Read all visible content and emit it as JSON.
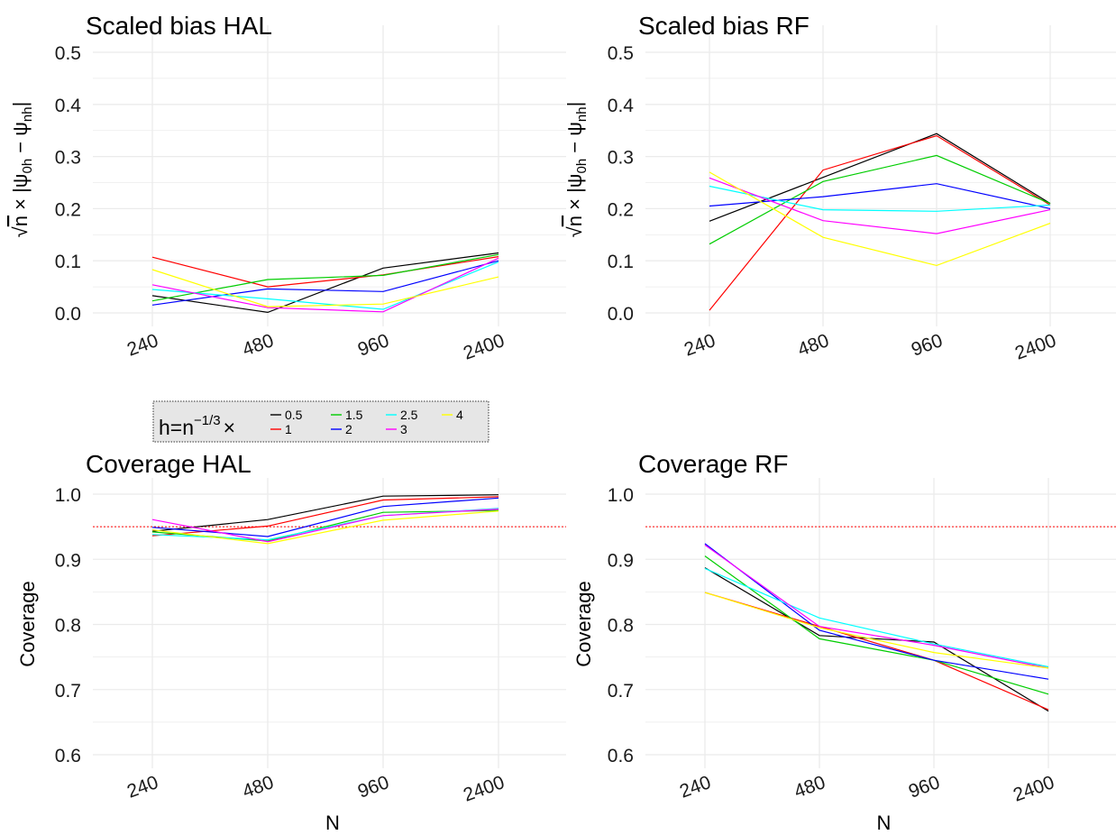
{
  "colors": {
    "0.5": "#000000",
    "1": "#ff0000",
    "1.5": "#00cd00",
    "2": "#0000ff",
    "2.5": "#00ffff",
    "3": "#ff00ff",
    "4": "#ffff00",
    "reference": "#ff0000",
    "grid": "#ebebeb"
  },
  "legend": {
    "title_main": "h=n",
    "title_sup": "−1/3",
    "title_times": "×",
    "entries": [
      "0.5",
      "1",
      "1.5",
      "2",
      "2.5",
      "3",
      "4"
    ]
  },
  "chart_data": [
    {
      "type": "line",
      "title": "Scaled bias HAL",
      "xlabel": "",
      "ylabel": "√n × |ψ0h − ψ̂nh|",
      "ylabel_parts": {
        "root": "n",
        "times": " × |",
        "psi1": "ψ",
        "sub1": "0h",
        "minus": " − ",
        "psi2": "ψ",
        "sub2": "nh",
        "close": "|"
      },
      "categories": [
        "240",
        "480",
        "960",
        "2400"
      ],
      "ylim": [
        0.0,
        0.5
      ],
      "yticks": [
        "0.0",
        "0.1",
        "0.2",
        "0.3",
        "0.4",
        "0.5"
      ],
      "series": [
        {
          "name": "0.5",
          "values": [
            0.033,
            0.001,
            0.086,
            0.115
          ]
        },
        {
          "name": "1",
          "values": [
            0.107,
            0.05,
            0.073,
            0.108
          ]
        },
        {
          "name": "1.5",
          "values": [
            0.023,
            0.064,
            0.072,
            0.112
          ]
        },
        {
          "name": "2",
          "values": [
            0.015,
            0.046,
            0.041,
            0.1
          ]
        },
        {
          "name": "2.5",
          "values": [
            0.045,
            0.027,
            0.007,
            0.098
          ]
        },
        {
          "name": "3",
          "values": [
            0.054,
            0.01,
            0.002,
            0.105
          ]
        },
        {
          "name": "4",
          "values": [
            0.083,
            0.012,
            0.017,
            0.069
          ]
        }
      ]
    },
    {
      "type": "line",
      "title": "Scaled bias RF",
      "xlabel": "",
      "ylabel": "√n × |ψ0h − ψ̂nh|",
      "ylabel_parts": {
        "root": "n",
        "times": " × |",
        "psi1": "ψ",
        "sub1": "0h",
        "minus": " − ",
        "psi2": "ψ",
        "sub2": "nh",
        "close": "|"
      },
      "categories": [
        "240",
        "480",
        "960",
        "2400"
      ],
      "ylim": [
        0.0,
        0.5
      ],
      "yticks": [
        "0.0",
        "0.1",
        "0.2",
        "0.3",
        "0.4",
        "0.5"
      ],
      "series": [
        {
          "name": "0.5",
          "values": [
            0.176,
            0.26,
            0.344,
            0.21
          ]
        },
        {
          "name": "1",
          "values": [
            0.005,
            0.274,
            0.34,
            0.207
          ]
        },
        {
          "name": "1.5",
          "values": [
            0.132,
            0.252,
            0.302,
            0.21
          ]
        },
        {
          "name": "2",
          "values": [
            0.205,
            0.223,
            0.248,
            0.2
          ]
        },
        {
          "name": "2.5",
          "values": [
            0.243,
            0.198,
            0.195,
            0.207
          ]
        },
        {
          "name": "3",
          "values": [
            0.259,
            0.177,
            0.152,
            0.198
          ]
        },
        {
          "name": "4",
          "values": [
            0.27,
            0.145,
            0.091,
            0.172
          ]
        }
      ]
    },
    {
      "type": "line",
      "title": "Coverage HAL",
      "xlabel": "N",
      "ylabel": "Coverage",
      "categories": [
        "240",
        "480",
        "960",
        "2400"
      ],
      "ylim": [
        0.6,
        1.0
      ],
      "yticks": [
        "0.6",
        "0.7",
        "0.8",
        "0.9",
        "1.0"
      ],
      "reference_line": 0.95,
      "series": [
        {
          "name": "0.5",
          "values": [
            0.943,
            0.961,
            0.997,
            0.999
          ]
        },
        {
          "name": "1",
          "values": [
            0.936,
            0.951,
            0.991,
            0.996
          ]
        },
        {
          "name": "1.5",
          "values": [
            0.942,
            0.928,
            0.972,
            0.975
          ]
        },
        {
          "name": "2",
          "values": [
            0.949,
            0.935,
            0.981,
            0.994
          ]
        },
        {
          "name": "2.5",
          "values": [
            0.938,
            0.93,
            0.967,
            0.978
          ]
        },
        {
          "name": "3",
          "values": [
            0.961,
            0.927,
            0.967,
            0.977
          ]
        },
        {
          "name": "4",
          "values": [
            0.945,
            0.924,
            0.96,
            0.974
          ]
        }
      ]
    },
    {
      "type": "line",
      "title": "Coverage RF",
      "xlabel": "N",
      "ylabel": "Coverage",
      "categories": [
        "240",
        "480",
        "960",
        "2400"
      ],
      "ylim": [
        0.6,
        1.0
      ],
      "yticks": [
        "0.6",
        "0.7",
        "0.8",
        "0.9",
        "1.0"
      ],
      "reference_line": 0.95,
      "series": [
        {
          "name": "0.5",
          "values": [
            0.887,
            0.783,
            0.773,
            0.667
          ]
        },
        {
          "name": "1",
          "values": [
            0.849,
            0.797,
            0.745,
            0.669
          ]
        },
        {
          "name": "1.5",
          "values": [
            0.905,
            0.778,
            0.745,
            0.693
          ]
        },
        {
          "name": "2",
          "values": [
            0.924,
            0.791,
            0.745,
            0.716
          ]
        },
        {
          "name": "2.5",
          "values": [
            0.886,
            0.81,
            0.77,
            0.735
          ]
        },
        {
          "name": "3",
          "values": [
            0.922,
            0.797,
            0.768,
            0.733
          ]
        },
        {
          "name": "4",
          "values": [
            0.849,
            0.795,
            0.757,
            0.733
          ]
        }
      ]
    }
  ]
}
